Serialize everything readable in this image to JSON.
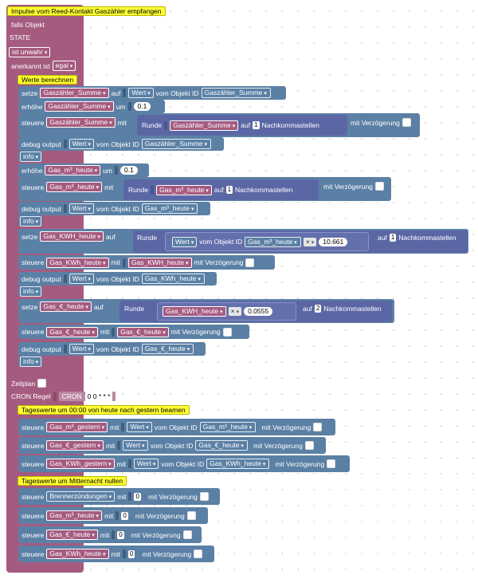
{
  "colors": {
    "event": "#a55b80",
    "logic": "#5b80a5",
    "math": "#5b67a5",
    "comment": "#ffff33"
  },
  "event": {
    "title": "Impulse vom Reed-Kontakt Gaszähler empfangen",
    "falls": "falls Objekt",
    "state": "STATE",
    "op": "ist unwahr",
    "ack": "anerkannt ist",
    "ack_val": "egal"
  },
  "werte": {
    "comment": "Werte berechnen"
  },
  "kw": {
    "setze": "setze",
    "auf": "auf",
    "erhoehe": "erhöhe",
    "um": "um",
    "steuere": "steuere",
    "mit": "mit",
    "runde": "Runde",
    "nachkomma": "Nachkommastellen",
    "verz": "mit Verzögerung",
    "debug": "debug output",
    "wert": "Wert",
    "vomobj": "vom Objekt ID",
    "info": "info",
    "mal": "×"
  },
  "b1": {
    "var": "Gaszähler_Summe",
    "obj": "Gaszähler_Summe"
  },
  "b2": {
    "var": "Gaszähler_Summe",
    "num": "0.1"
  },
  "b3": {
    "var": "Gaszähler_Summe",
    "inner": "Gaszähler_Summe",
    "dec": "1"
  },
  "b4": {
    "obj": "Gaszähler_Summe"
  },
  "b5": {
    "var": "Gas_m³_heute",
    "num": "0.1"
  },
  "b6": {
    "var": "Gas_m³_heute",
    "inner": "Gas_m³_heute",
    "dec": "1"
  },
  "b7": {
    "obj": "Gas_m³_heute"
  },
  "b8": {
    "var": "Gas_KWH_heute",
    "obj": "Gas_m³_heute",
    "num": "10.661",
    "dec": "1"
  },
  "b9": {
    "var": "Gas_KWh_heute",
    "inner": "Gas_KWH_heute"
  },
  "b10": {
    "obj": "Gas_KWh_heute"
  },
  "b11": {
    "var": "Gas_€_heute",
    "inner": "Gas_KWH_heute",
    "num": "0.0555",
    "dec": "2"
  },
  "b12": {
    "var": "Gas_€_heute",
    "inner": "Gas_€_heute"
  },
  "b13": {
    "obj": "Gas_€_heute"
  },
  "sched": {
    "zeitplan": "Zeitplan",
    "cron": "CRON Regel",
    "cron_tag": "CRON",
    "cron_val": "0 0 * * *",
    "comment": "Tageswerte um 00:00 von heute nach gestern beamen",
    "comment2": "Tageswerte um Mitternacht nullen"
  },
  "c1": {
    "var": "Gas_m³_gestern",
    "obj": "Gas_m³_heute"
  },
  "c2": {
    "var": "Gas_€_gestern",
    "obj": "Gas_€_heute"
  },
  "c3": {
    "var": "Gas_KWh_gestern",
    "obj": "Gas_KWh_heute"
  },
  "d1": {
    "var": "Brennerzündungen",
    "num": "0"
  },
  "d2": {
    "var": "Gas_m³_heute",
    "num": "0"
  },
  "d3": {
    "var": "Gas_€_heute",
    "num": "0"
  },
  "d4": {
    "var": "Gas_KWh_heute",
    "num": "0"
  }
}
